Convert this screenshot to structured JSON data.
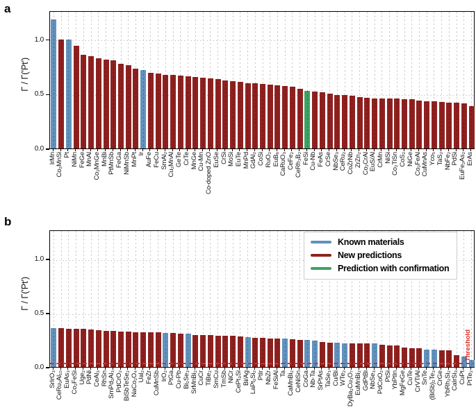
{
  "figure": {
    "panels": [
      {
        "letter": "a"
      },
      {
        "letter": "b"
      }
    ],
    "ylabel": "Γ / Γ('Pt')",
    "threshold_label": "Threshold"
  },
  "colors": {
    "known": "#6292bd",
    "new": "#8e2120",
    "confirmed": "#3ea263",
    "threshold": "#e02b20",
    "grid": "#c9c9c9",
    "spine": "#000000"
  },
  "legend": {
    "items": [
      {
        "label": "Known materials",
        "key": "known"
      },
      {
        "label": "New predictions",
        "key": "new"
      },
      {
        "label": "Prediction with confirmation",
        "key": "confirmed"
      }
    ]
  },
  "chart_data": [
    {
      "type": "bar",
      "title": "a",
      "ylabel": "Γ / Γ('Pt')",
      "ylim": [
        0,
        1.26
      ],
      "yticks": [
        0.0,
        0.5,
        1.0
      ],
      "yticklabels": [
        "0.0",
        "0.5",
        "1.0"
      ],
      "hgrid": [
        0.5,
        1.0
      ],
      "grid": "dashed vertical line per category, dotted horizontal at 0.5 and 1.0",
      "categories": [
        "IrMn",
        "Co₂MnSi",
        "Pt",
        "NiMn",
        "FeGe",
        "MnAl",
        "Co₂MnGe",
        "MnBi",
        "PtMnSb",
        "FeGa",
        "NiMnSb",
        "MnPt",
        "Ir",
        "AuFe",
        "FeCu",
        "SmAl₂",
        "Cu₂MnAl",
        "GeTe",
        "CrTe",
        "MnGe",
        "Cu-Mn",
        "Co-doped ZnO",
        "EuSe",
        "CrSi",
        "MoSi",
        "EuTe",
        "MnPd",
        "GdAl₂",
        "CoSi",
        "RuO₂",
        "EuB₆",
        "CaRuO₃",
        "CeFe₂",
        "CeRh₃B₂",
        "FeSi",
        "Cu-Nb",
        "FeAs",
        "CrSe",
        "NbSe₃",
        "CeRu₂",
        "CoZrNb",
        "ZrZn₂",
        "Co₂CrAl",
        "EuS/Al",
        "CrMn",
        "NiSi",
        "Co₂TiSn",
        "CoS₂",
        "NiGe",
        "Co₂FeAl",
        "CuMnAs",
        "Yco₅",
        "TaS₂",
        "NbFe₂",
        "PdSi",
        "EuFe₂As₂",
        "ErAs"
      ],
      "values": [
        1.18,
        1.0,
        1.0,
        0.94,
        0.86,
        0.845,
        0.825,
        0.815,
        0.805,
        0.775,
        0.76,
        0.73,
        0.72,
        0.69,
        0.685,
        0.675,
        0.67,
        0.665,
        0.66,
        0.655,
        0.648,
        0.643,
        0.632,
        0.625,
        0.617,
        0.607,
        0.6,
        0.594,
        0.588,
        0.582,
        0.577,
        0.572,
        0.565,
        0.549,
        0.525,
        0.52,
        0.513,
        0.5,
        0.492,
        0.487,
        0.48,
        0.468,
        0.464,
        0.46,
        0.457,
        0.455,
        0.455,
        0.449,
        0.448,
        0.437,
        0.435,
        0.432,
        0.425,
        0.42,
        0.416,
        0.412,
        0.385
      ],
      "series_class": [
        "known",
        "new",
        "known",
        "new",
        "new",
        "new",
        "new",
        "new",
        "new",
        "new",
        "new",
        "new",
        "known",
        "new",
        "new",
        "new",
        "new",
        "new",
        "new",
        "new",
        "new",
        "new",
        "new",
        "new",
        "new",
        "new",
        "new",
        "new",
        "new",
        "new",
        "new",
        "new",
        "new",
        "new",
        "confirmed",
        "new",
        "new",
        "new",
        "new",
        "new",
        "new",
        "new",
        "new",
        "new",
        "new",
        "new",
        "new",
        "new",
        "new",
        "new",
        "new",
        "new",
        "new",
        "new",
        "new",
        "new",
        "new"
      ]
    },
    {
      "type": "bar",
      "title": "b",
      "ylabel": "Γ / Γ('Pt')",
      "ylim": [
        0,
        1.27
      ],
      "yticks": [
        0.0,
        0.5,
        1.0
      ],
      "yticklabels": [
        "0.0",
        "0.5",
        "1.0"
      ],
      "hgrid": [
        0.5,
        1.0
      ],
      "grid": "dashed vertical line per category, dotted horizontal at 0.5 and 1.0",
      "threshold": 0.03,
      "legend_position": "upper right",
      "categories": [
        "SrIrO₃",
        "CeRu₂Al₁₀",
        "EuAs₃",
        "Co₂FeSi",
        "Uge₂",
        "PdNi",
        "CeAl₃",
        "RhSn",
        "SmPd₂Al₃",
        "PdCrO₂",
        "BiSbTeSe₂",
        "NaCo₂O₄",
        "Ual₂",
        "FeZr",
        "CuMnSb",
        "IrO₂",
        "PtGa",
        "Cu-Pb",
        "Bi₂Se₃",
        "SrMnBi₂",
        "CuCr",
        "TiBe₂",
        "SmCu",
        "TmSb",
        "NiCr",
        "CePt₃Si",
        "Bi/Ag",
        "LaPt₂Si₂",
        "PtIr",
        "NbZr",
        "FeSiAl",
        "Ta",
        "CaMnBi₂",
        "CeNiSn",
        "CoGa",
        "Nb-Ta",
        "SrPtAs",
        "TaSe₃",
        "Cu/Bi",
        "WTe₂",
        "DyBa₂Cu₃O₇",
        "EuMnBi₂",
        "GdPtBi",
        "NbSe₃",
        "PdCoO₂",
        "PtSi",
        "YbPtIn",
        "MgFeGe",
        "CuTe",
        "CrVTiAl",
        "SnTe",
        "(BiSb)₂Te₃",
        "CrGe",
        "YbRh₂Si₂",
        "CaIrSi₃",
        "CuPt",
        "PtTe₂"
      ],
      "values": [
        0.36,
        0.356,
        0.354,
        0.352,
        0.35,
        0.346,
        0.338,
        0.335,
        0.332,
        0.328,
        0.325,
        0.323,
        0.322,
        0.32,
        0.318,
        0.316,
        0.313,
        0.31,
        0.306,
        0.298,
        0.296,
        0.293,
        0.291,
        0.288,
        0.286,
        0.282,
        0.278,
        0.272,
        0.268,
        0.266,
        0.262,
        0.26,
        0.257,
        0.252,
        0.25,
        0.242,
        0.23,
        0.227,
        0.223,
        0.22,
        0.218,
        0.217,
        0.215,
        0.219,
        0.208,
        0.2,
        0.198,
        0.178,
        0.175,
        0.173,
        0.162,
        0.158,
        0.156,
        0.154,
        0.112,
        0.098,
        0.062
      ],
      "series_class": [
        "known",
        "new",
        "new",
        "new",
        "new",
        "new",
        "new",
        "new",
        "new",
        "new",
        "new",
        "new",
        "new",
        "new",
        "new",
        "known",
        "new",
        "new",
        "known",
        "new",
        "new",
        "new",
        "new",
        "new",
        "new",
        "new",
        "known",
        "new",
        "new",
        "new",
        "new",
        "known",
        "new",
        "new",
        "known",
        "known",
        "new",
        "new",
        "known",
        "known",
        "new",
        "new",
        "new",
        "known",
        "new",
        "new",
        "new",
        "new",
        "new",
        "new",
        "known",
        "known",
        "new",
        "new",
        "new",
        "known",
        "known"
      ]
    }
  ]
}
